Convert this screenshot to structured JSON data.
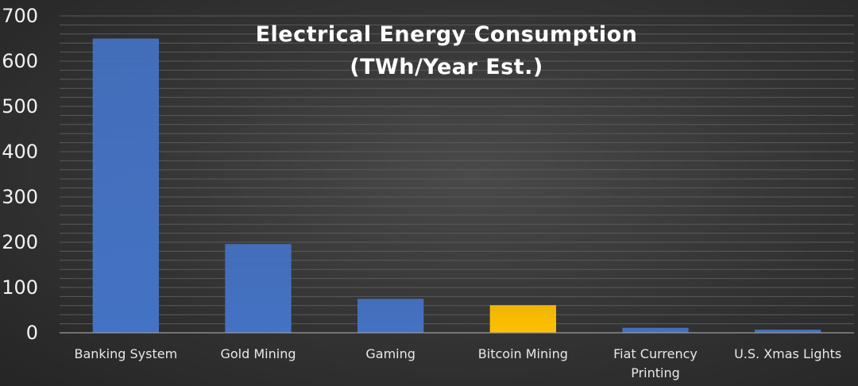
{
  "chart_data": {
    "type": "bar",
    "title": "Electrical Energy Consumption",
    "subtitle": "(TWh/Year Est.)",
    "categories": [
      "Banking System",
      "Gold Mining",
      "Gaming",
      "Bitcoin Mining",
      "Fiat Currency Printing",
      "U.S. Xmas Lights"
    ],
    "category_lines": [
      [
        "Banking System"
      ],
      [
        "Gold Mining"
      ],
      [
        "Gaming"
      ],
      [
        "Bitcoin Mining"
      ],
      [
        "Fiat Currency",
        "Printing"
      ],
      [
        "U.S. Xmas Lights"
      ]
    ],
    "values": [
      650,
      196,
      75,
      61,
      11,
      7
    ],
    "bar_colors": [
      "#4472c4",
      "#4472c4",
      "#4472c4",
      "#ffc000",
      "#4472c4",
      "#4472c4"
    ],
    "ylim": [
      0,
      700
    ],
    "yticks": [
      0,
      100,
      200,
      300,
      400,
      500,
      600,
      700
    ],
    "grid": true,
    "xlabel": "",
    "ylabel": ""
  }
}
